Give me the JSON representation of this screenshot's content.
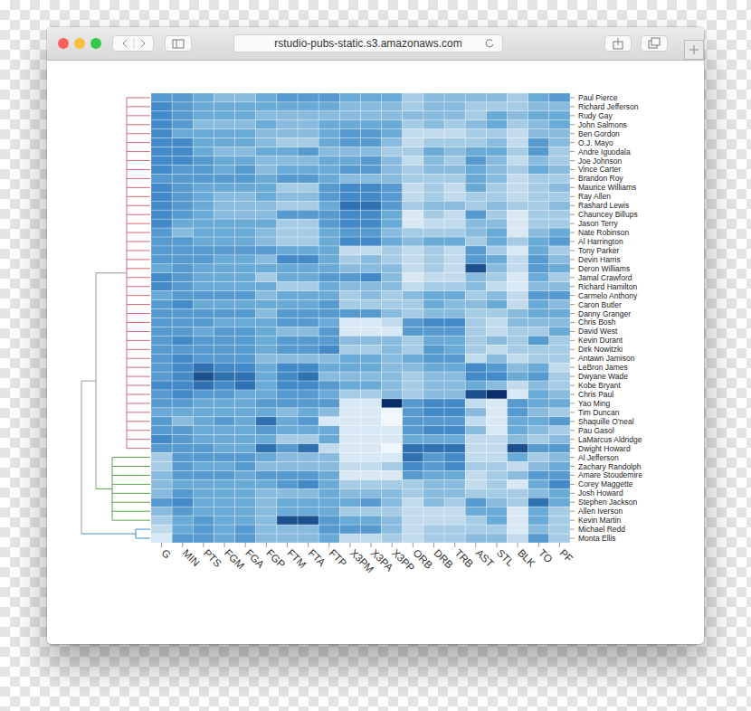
{
  "browser": {
    "url": "rstudio-pubs-static.s3.amazonaws.com"
  },
  "chart_data": {
    "type": "heatmap",
    "columns": [
      "G",
      "MIN",
      "PTS",
      "FGM",
      "FGA",
      "FGP",
      "FTM",
      "FTA",
      "FTP",
      "X3PM",
      "X3PA",
      "X3PP",
      "ORB",
      "DRB",
      "TRB",
      "AST",
      "STL",
      "BLK",
      "TO",
      "PF"
    ],
    "rows": [
      "Paul Pierce",
      "Richard Jefferson",
      "Rudy Gay",
      "John Salmons",
      "Ben Gordon",
      "O.J. Mayo",
      "Andre Iguodala",
      "Joe Johnson",
      "Vince Carter",
      "Brandon Roy",
      "Maurice Williams",
      "Ray Allen",
      "Rashard Lewis",
      "Chauncey Billups",
      "Jason Terry",
      "Nate Robinson",
      "Al Harrington",
      "Tony Parker",
      "Devin Harris",
      "Deron Williams",
      "Jamal Crawford",
      "Richard Hamilton",
      "Carmelo Anthony",
      "Caron Butler",
      "Danny Granger",
      "Chris Bosh",
      "David West",
      "Kevin Durant",
      "Dirk Nowitzki",
      "Antawn Jamison",
      "LeBron James",
      "Dwyane Wade",
      "Kobe Bryant",
      "Chris Paul",
      "Yao Ming",
      "Tim Duncan",
      "Shaquille O'neal",
      "Pau Gasol",
      "LaMarcus Aldridge",
      "Dwight Howard",
      "Al Jefferson",
      "Zachary Randolph",
      "Amare Stoudemire",
      "Corey Maggette",
      "Josh Howard",
      "Stephen Jackson",
      "Allen Iverson",
      "Kevin Martin",
      "Michael Redd",
      "Monta Ellis"
    ],
    "cells": [
      [
        0.6,
        0.6,
        0.5,
        0.4,
        0.4,
        0.5,
        0.6,
        0.6,
        0.6,
        0.5,
        0.5,
        0.5,
        0.3,
        0.4,
        0.4,
        0.4,
        0.4,
        0.3,
        0.5,
        0.6
      ],
      [
        0.7,
        0.6,
        0.5,
        0.5,
        0.5,
        0.5,
        0.5,
        0.5,
        0.5,
        0.4,
        0.4,
        0.4,
        0.3,
        0.4,
        0.4,
        0.3,
        0.3,
        0.3,
        0.4,
        0.4
      ],
      [
        0.7,
        0.6,
        0.5,
        0.5,
        0.5,
        0.4,
        0.4,
        0.4,
        0.4,
        0.4,
        0.4,
        0.4,
        0.4,
        0.4,
        0.4,
        0.3,
        0.5,
        0.4,
        0.5,
        0.5
      ],
      [
        0.7,
        0.6,
        0.4,
        0.4,
        0.4,
        0.5,
        0.4,
        0.4,
        0.5,
        0.5,
        0.5,
        0.5,
        0.3,
        0.4,
        0.3,
        0.4,
        0.5,
        0.3,
        0.4,
        0.5
      ],
      [
        0.7,
        0.5,
        0.5,
        0.5,
        0.5,
        0.4,
        0.4,
        0.4,
        0.5,
        0.6,
        0.6,
        0.5,
        0.2,
        0.2,
        0.2,
        0.3,
        0.3,
        0.2,
        0.4,
        0.4
      ],
      [
        0.7,
        0.7,
        0.5,
        0.5,
        0.5,
        0.4,
        0.3,
        0.3,
        0.5,
        0.6,
        0.6,
        0.4,
        0.2,
        0.3,
        0.3,
        0.3,
        0.4,
        0.2,
        0.6,
        0.4
      ],
      [
        0.7,
        0.7,
        0.5,
        0.4,
        0.4,
        0.5,
        0.5,
        0.6,
        0.4,
        0.4,
        0.4,
        0.3,
        0.3,
        0.5,
        0.4,
        0.5,
        0.5,
        0.3,
        0.6,
        0.3
      ],
      [
        0.7,
        0.7,
        0.6,
        0.5,
        0.5,
        0.4,
        0.4,
        0.4,
        0.5,
        0.5,
        0.6,
        0.4,
        0.2,
        0.4,
        0.3,
        0.6,
        0.4,
        0.2,
        0.4,
        0.3
      ],
      [
        0.7,
        0.6,
        0.6,
        0.5,
        0.6,
        0.4,
        0.5,
        0.5,
        0.5,
        0.6,
        0.6,
        0.4,
        0.3,
        0.4,
        0.4,
        0.5,
        0.4,
        0.3,
        0.5,
        0.4
      ],
      [
        0.6,
        0.6,
        0.6,
        0.6,
        0.6,
        0.5,
        0.6,
        0.6,
        0.5,
        0.4,
        0.4,
        0.4,
        0.3,
        0.3,
        0.3,
        0.5,
        0.4,
        0.2,
        0.3,
        0.3
      ],
      [
        0.7,
        0.6,
        0.5,
        0.5,
        0.5,
        0.5,
        0.3,
        0.3,
        0.6,
        0.7,
        0.7,
        0.6,
        0.2,
        0.3,
        0.2,
        0.5,
        0.3,
        0.2,
        0.3,
        0.4
      ],
      [
        0.7,
        0.6,
        0.5,
        0.4,
        0.4,
        0.5,
        0.4,
        0.4,
        0.6,
        0.7,
        0.7,
        0.6,
        0.2,
        0.3,
        0.2,
        0.3,
        0.3,
        0.2,
        0.3,
        0.3
      ],
      [
        0.7,
        0.6,
        0.5,
        0.4,
        0.4,
        0.4,
        0.3,
        0.3,
        0.5,
        0.8,
        0.8,
        0.6,
        0.3,
        0.4,
        0.4,
        0.3,
        0.4,
        0.3,
        0.3,
        0.4
      ],
      [
        0.7,
        0.6,
        0.5,
        0.4,
        0.4,
        0.4,
        0.6,
        0.6,
        0.6,
        0.7,
        0.7,
        0.5,
        0.1,
        0.3,
        0.2,
        0.6,
        0.3,
        0.1,
        0.3,
        0.3
      ],
      [
        0.7,
        0.5,
        0.5,
        0.5,
        0.5,
        0.5,
        0.3,
        0.3,
        0.6,
        0.7,
        0.7,
        0.5,
        0.1,
        0.2,
        0.2,
        0.4,
        0.4,
        0.1,
        0.3,
        0.3
      ],
      [
        0.6,
        0.4,
        0.5,
        0.5,
        0.5,
        0.4,
        0.3,
        0.3,
        0.5,
        0.6,
        0.6,
        0.4,
        0.3,
        0.3,
        0.3,
        0.4,
        0.5,
        0.1,
        0.4,
        0.5
      ],
      [
        0.6,
        0.6,
        0.5,
        0.5,
        0.5,
        0.4,
        0.3,
        0.3,
        0.5,
        0.7,
        0.7,
        0.5,
        0.4,
        0.5,
        0.5,
        0.3,
        0.5,
        0.3,
        0.5,
        0.6
      ],
      [
        0.6,
        0.6,
        0.6,
        0.6,
        0.6,
        0.6,
        0.5,
        0.5,
        0.5,
        0.2,
        0.2,
        0.3,
        0.2,
        0.3,
        0.2,
        0.6,
        0.3,
        0.1,
        0.5,
        0.3
      ],
      [
        0.6,
        0.6,
        0.6,
        0.5,
        0.5,
        0.4,
        0.7,
        0.7,
        0.5,
        0.3,
        0.4,
        0.3,
        0.2,
        0.3,
        0.2,
        0.6,
        0.5,
        0.2,
        0.6,
        0.4
      ],
      [
        0.5,
        0.6,
        0.5,
        0.5,
        0.5,
        0.5,
        0.5,
        0.5,
        0.5,
        0.4,
        0.4,
        0.4,
        0.2,
        0.3,
        0.2,
        0.9,
        0.4,
        0.2,
        0.6,
        0.5
      ],
      [
        0.7,
        0.6,
        0.5,
        0.5,
        0.5,
        0.3,
        0.5,
        0.5,
        0.6,
        0.6,
        0.7,
        0.4,
        0.1,
        0.2,
        0.2,
        0.4,
        0.3,
        0.1,
        0.5,
        0.3
      ],
      [
        0.7,
        0.6,
        0.5,
        0.5,
        0.5,
        0.5,
        0.3,
        0.3,
        0.5,
        0.4,
        0.4,
        0.4,
        0.2,
        0.3,
        0.3,
        0.4,
        0.2,
        0.1,
        0.4,
        0.4
      ],
      [
        0.5,
        0.6,
        0.6,
        0.6,
        0.6,
        0.4,
        0.5,
        0.5,
        0.5,
        0.3,
        0.4,
        0.3,
        0.4,
        0.5,
        0.5,
        0.3,
        0.4,
        0.2,
        0.6,
        0.6
      ],
      [
        0.6,
        0.7,
        0.5,
        0.5,
        0.5,
        0.5,
        0.5,
        0.5,
        0.6,
        0.3,
        0.3,
        0.3,
        0.3,
        0.5,
        0.4,
        0.4,
        0.5,
        0.2,
        0.5,
        0.4
      ],
      [
        0.6,
        0.6,
        0.6,
        0.6,
        0.6,
        0.4,
        0.6,
        0.6,
        0.6,
        0.6,
        0.6,
        0.4,
        0.3,
        0.4,
        0.4,
        0.3,
        0.3,
        0.4,
        0.5,
        0.5
      ],
      [
        0.6,
        0.6,
        0.6,
        0.5,
        0.5,
        0.5,
        0.6,
        0.6,
        0.5,
        0.1,
        0.1,
        0.2,
        0.6,
        0.7,
        0.7,
        0.3,
        0.2,
        0.4,
        0.4,
        0.4
      ],
      [
        0.6,
        0.6,
        0.5,
        0.6,
        0.6,
        0.5,
        0.4,
        0.4,
        0.6,
        0.1,
        0.1,
        0.1,
        0.6,
        0.6,
        0.6,
        0.3,
        0.2,
        0.3,
        0.3,
        0.5
      ],
      [
        0.6,
        0.7,
        0.6,
        0.6,
        0.6,
        0.5,
        0.6,
        0.6,
        0.6,
        0.4,
        0.4,
        0.4,
        0.3,
        0.5,
        0.5,
        0.3,
        0.4,
        0.3,
        0.6,
        0.3
      ],
      [
        0.6,
        0.6,
        0.6,
        0.6,
        0.6,
        0.5,
        0.6,
        0.6,
        0.7,
        0.3,
        0.3,
        0.4,
        0.3,
        0.6,
        0.5,
        0.3,
        0.2,
        0.3,
        0.3,
        0.3
      ],
      [
        0.6,
        0.7,
        0.6,
        0.6,
        0.6,
        0.4,
        0.4,
        0.4,
        0.4,
        0.5,
        0.5,
        0.4,
        0.5,
        0.6,
        0.6,
        0.2,
        0.4,
        0.2,
        0.3,
        0.3
      ],
      [
        0.6,
        0.7,
        0.8,
        0.7,
        0.7,
        0.5,
        0.7,
        0.7,
        0.5,
        0.5,
        0.5,
        0.4,
        0.4,
        0.5,
        0.5,
        0.7,
        0.6,
        0.4,
        0.5,
        0.2
      ],
      [
        0.6,
        0.7,
        0.9,
        0.8,
        0.8,
        0.5,
        0.7,
        0.8,
        0.4,
        0.4,
        0.4,
        0.4,
        0.3,
        0.4,
        0.4,
        0.7,
        0.7,
        0.5,
        0.6,
        0.3
      ],
      [
        0.7,
        0.7,
        0.8,
        0.7,
        0.8,
        0.5,
        0.7,
        0.7,
        0.6,
        0.5,
        0.5,
        0.4,
        0.3,
        0.4,
        0.4,
        0.5,
        0.4,
        0.2,
        0.4,
        0.3
      ],
      [
        0.6,
        0.7,
        0.6,
        0.6,
        0.5,
        0.5,
        0.6,
        0.6,
        0.5,
        0.3,
        0.3,
        0.4,
        0.3,
        0.4,
        0.4,
        0.9,
        1.0,
        0.1,
        0.5,
        0.4
      ],
      [
        0.6,
        0.6,
        0.5,
        0.5,
        0.5,
        0.6,
        0.6,
        0.6,
        0.6,
        0.1,
        0.1,
        1.0,
        0.6,
        0.7,
        0.7,
        0.2,
        0.1,
        0.6,
        0.5,
        0.5
      ],
      [
        0.5,
        0.5,
        0.5,
        0.5,
        0.5,
        0.5,
        0.4,
        0.5,
        0.4,
        0.1,
        0.1,
        0.0,
        0.6,
        0.7,
        0.7,
        0.4,
        0.1,
        0.6,
        0.4,
        0.3
      ],
      [
        0.6,
        0.4,
        0.5,
        0.6,
        0.5,
        0.8,
        0.5,
        0.6,
        0.1,
        0.1,
        0.1,
        0.0,
        0.6,
        0.6,
        0.6,
        0.2,
        0.1,
        0.5,
        0.5,
        0.6
      ],
      [
        0.6,
        0.6,
        0.5,
        0.5,
        0.5,
        0.6,
        0.5,
        0.5,
        0.5,
        0.1,
        0.1,
        0.1,
        0.6,
        0.7,
        0.7,
        0.4,
        0.1,
        0.5,
        0.4,
        0.3
      ],
      [
        0.7,
        0.6,
        0.5,
        0.5,
        0.5,
        0.5,
        0.3,
        0.3,
        0.5,
        0.1,
        0.1,
        0.1,
        0.5,
        0.5,
        0.5,
        0.2,
        0.2,
        0.4,
        0.3,
        0.4
      ],
      [
        0.6,
        0.6,
        0.6,
        0.5,
        0.5,
        0.8,
        0.6,
        0.8,
        0.2,
        0.1,
        0.1,
        0.0,
        0.8,
        0.8,
        0.8,
        0.2,
        0.2,
        0.9,
        0.6,
        0.6
      ],
      [
        0.3,
        0.6,
        0.6,
        0.6,
        0.6,
        0.5,
        0.4,
        0.4,
        0.4,
        0.1,
        0.1,
        0.1,
        0.8,
        0.6,
        0.7,
        0.2,
        0.2,
        0.5,
        0.3,
        0.4
      ],
      [
        0.3,
        0.6,
        0.5,
        0.5,
        0.6,
        0.4,
        0.4,
        0.4,
        0.4,
        0.2,
        0.2,
        0.3,
        0.7,
        0.6,
        0.7,
        0.3,
        0.3,
        0.2,
        0.4,
        0.5
      ],
      [
        0.4,
        0.6,
        0.6,
        0.6,
        0.5,
        0.6,
        0.6,
        0.6,
        0.5,
        0.1,
        0.1,
        0.1,
        0.6,
        0.5,
        0.5,
        0.2,
        0.3,
        0.4,
        0.6,
        0.6
      ],
      [
        0.4,
        0.5,
        0.5,
        0.5,
        0.5,
        0.5,
        0.6,
        0.7,
        0.5,
        0.3,
        0.3,
        0.3,
        0.3,
        0.4,
        0.4,
        0.2,
        0.3,
        0.1,
        0.5,
        0.7
      ],
      [
        0.4,
        0.6,
        0.5,
        0.5,
        0.5,
        0.4,
        0.4,
        0.4,
        0.5,
        0.4,
        0.4,
        0.4,
        0.3,
        0.4,
        0.4,
        0.3,
        0.3,
        0.3,
        0.4,
        0.5
      ],
      [
        0.6,
        0.7,
        0.5,
        0.5,
        0.5,
        0.4,
        0.5,
        0.5,
        0.5,
        0.5,
        0.6,
        0.4,
        0.2,
        0.4,
        0.3,
        0.6,
        0.4,
        0.3,
        0.8,
        0.5
      ],
      [
        0.4,
        0.6,
        0.5,
        0.5,
        0.5,
        0.4,
        0.5,
        0.5,
        0.5,
        0.3,
        0.3,
        0.3,
        0.2,
        0.2,
        0.2,
        0.5,
        0.5,
        0.1,
        0.5,
        0.3
      ],
      [
        0.3,
        0.5,
        0.6,
        0.5,
        0.5,
        0.4,
        0.9,
        0.9,
        0.6,
        0.5,
        0.5,
        0.4,
        0.2,
        0.2,
        0.2,
        0.3,
        0.5,
        0.1,
        0.5,
        0.3
      ],
      [
        0.2,
        0.5,
        0.6,
        0.5,
        0.6,
        0.4,
        0.4,
        0.4,
        0.6,
        0.6,
        0.6,
        0.4,
        0.2,
        0.3,
        0.3,
        0.3,
        0.3,
        0.1,
        0.4,
        0.3
      ],
      [
        0.1,
        0.6,
        0.6,
        0.5,
        0.6,
        0.4,
        0.4,
        0.4,
        0.5,
        0.2,
        0.2,
        0.3,
        0.2,
        0.3,
        0.3,
        0.4,
        0.4,
        0.2,
        0.6,
        0.3
      ]
    ],
    "color_range": [
      0,
      1
    ],
    "dendrogram": {
      "clusters": [
        {
          "color": "#d4697a",
          "size": 40
        },
        {
          "color": "#5aa34a",
          "size": 8
        },
        {
          "color": "#3f8fc6",
          "size": 2
        }
      ]
    }
  }
}
